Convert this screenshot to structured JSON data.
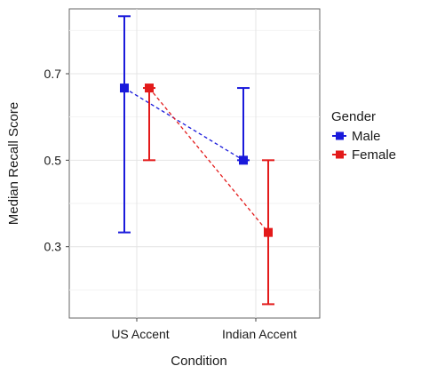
{
  "chart_data": {
    "type": "scatter",
    "xlabel": "Condition",
    "ylabel": "Median Recall Score",
    "categories": [
      "US Accent",
      "Indian Accent"
    ],
    "ylim": [
      0.135,
      0.85
    ],
    "yticks": [
      "0.3",
      "0.5",
      "0.7"
    ],
    "grid": true,
    "legend": {
      "title": "Gender",
      "position": "right"
    },
    "series": [
      {
        "name": "Male",
        "color": "#1a1adb",
        "values": [
          0.667,
          0.5
        ],
        "err_low": [
          0.333,
          0.5
        ],
        "err_high": [
          0.833,
          0.667
        ]
      },
      {
        "name": "Female",
        "color": "#e31a1a",
        "values": [
          0.667,
          0.333
        ],
        "err_low": [
          0.5,
          0.167
        ],
        "err_high": [
          0.667,
          0.5
        ]
      }
    ]
  }
}
